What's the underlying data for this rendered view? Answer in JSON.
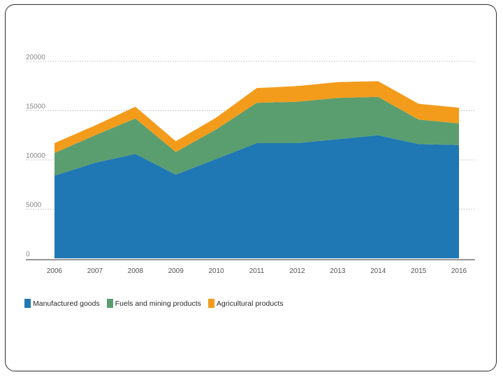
{
  "chart_data": {
    "type": "area",
    "stacked": true,
    "x": [
      "2006",
      "2007",
      "2008",
      "2009",
      "2010",
      "2011",
      "2012",
      "2013",
      "2014",
      "2015",
      "2016"
    ],
    "series": [
      {
        "name": "Manufactured goods",
        "color": "#1f77b4",
        "values": [
          8400,
          9700,
          10600,
          8500,
          10100,
          11700,
          11700,
          12100,
          12500,
          11600,
          11500
        ]
      },
      {
        "name": "Fuels and mining products",
        "color": "#5a9e6f",
        "values": [
          2300,
          2800,
          3600,
          2300,
          3000,
          4100,
          4200,
          4200,
          3900,
          2500,
          2200
        ]
      },
      {
        "name": "Agricultural products",
        "color": "#f39c1c",
        "values": [
          1000,
          1000,
          1200,
          1100,
          1200,
          1500,
          1600,
          1600,
          1600,
          1600,
          1600
        ]
      }
    ],
    "yticks": [
      "0",
      "5000",
      "10000",
      "15000",
      "20000"
    ],
    "ylim": [
      0,
      20000
    ],
    "grid": true,
    "legend_position": "bottom-left"
  }
}
